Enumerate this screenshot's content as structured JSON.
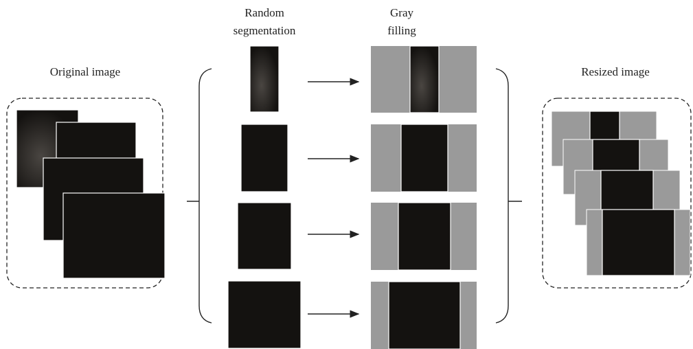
{
  "labels": {
    "original": "Original image",
    "segmentation": [
      "Random",
      "segmentation"
    ],
    "filling": [
      "Gray",
      "filling"
    ],
    "resized": "Resized image"
  }
}
